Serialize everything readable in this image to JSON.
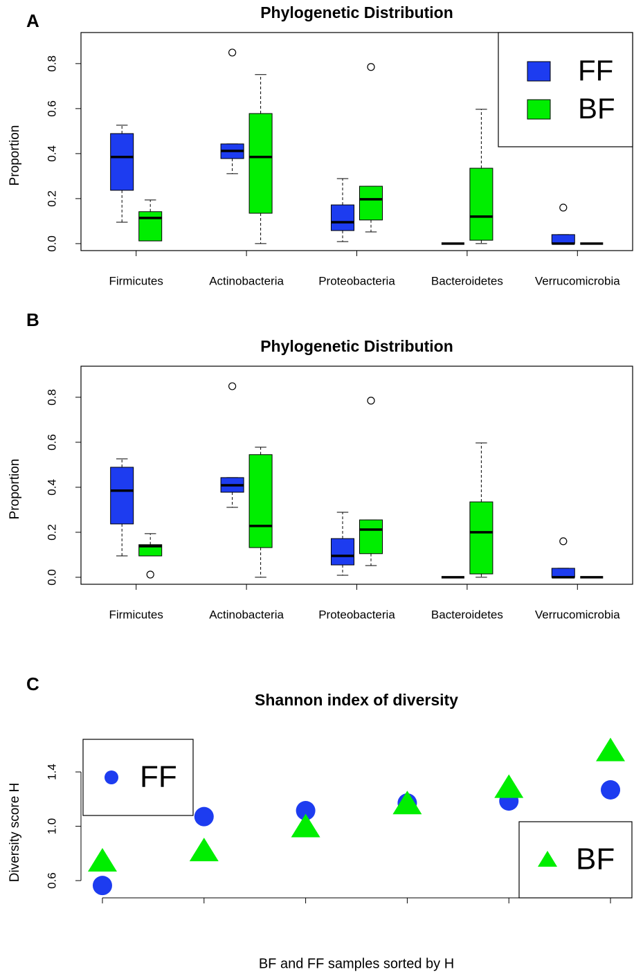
{
  "chart_data": [
    {
      "type": "box",
      "panel_label": "A",
      "title": "Phylogenetic Distribution",
      "y_label": "Proportion",
      "categories": [
        "Firmicutes",
        "Actinobacteria",
        "Proteobacteria",
        "Bacteroidetes",
        "Verrucomicrobia"
      ],
      "ylim": [
        -0.031,
        0.938
      ],
      "yticks": [
        {
          "value": 0,
          "label": "0.0"
        },
        0.2,
        0.4,
        0.6,
        0.8
      ],
      "legend": "top-right",
      "series": [
        {
          "name": "FF",
          "color": "#1d3cf0",
          "boxes": [
            {
              "low": 0.095,
              "q1": 0.237,
              "median": 0.385,
              "q3": 0.489,
              "high": 0.526,
              "outliers": []
            },
            {
              "low": 0.311,
              "q1": 0.378,
              "median": 0.412,
              "q3": 0.443,
              "high": 0.443,
              "outliers": [
                0.849
              ]
            },
            {
              "low": 0.009,
              "q1": 0.058,
              "median": 0.095,
              "q3": 0.172,
              "high": 0.289,
              "outliers": []
            },
            {
              "low": 0,
              "q1": 0,
              "median": 0,
              "q3": 0,
              "high": 0,
              "outliers": []
            },
            {
              "low": 0,
              "q1": 0,
              "median": 0,
              "q3": 0.04,
              "high": 0.04,
              "outliers": [
                0.16
              ]
            }
          ]
        },
        {
          "name": "BF",
          "color": "#00ee00",
          "boxes": [
            {
              "low": 0.012,
              "q1": 0.012,
              "median": 0.114,
              "q3": 0.142,
              "high": 0.194,
              "outliers": []
            },
            {
              "low": 0,
              "q1": 0.135,
              "median": 0.385,
              "q3": 0.578,
              "high": 0.751,
              "outliers": []
            },
            {
              "low": 0.052,
              "q1": 0.105,
              "median": 0.197,
              "q3": 0.255,
              "high": 0.255,
              "outliers": [
                0.785
              ]
            },
            {
              "low": 0,
              "q1": 0.015,
              "median": 0.12,
              "q3": 0.335,
              "high": 0.597,
              "outliers": []
            },
            {
              "low": 0,
              "q1": 0,
              "median": 0,
              "q3": 0,
              "high": 0,
              "outliers": []
            }
          ]
        }
      ]
    },
    {
      "type": "box",
      "panel_label": "B",
      "title": "Phylogenetic Distribution",
      "y_label": "Proportion",
      "categories": [
        "Firmicutes",
        "Actinobacteria",
        "Proteobacteria",
        "Bacteroidetes",
        "Verrucomicrobia"
      ],
      "ylim": [
        -0.031,
        0.938
      ],
      "yticks": [
        {
          "value": 0,
          "label": "0.0"
        },
        0.2,
        0.4,
        0.6,
        0.8
      ],
      "series": [
        {
          "name": "FF",
          "color": "#1d3cf0",
          "boxes": [
            {
              "low": 0.095,
              "q1": 0.237,
              "median": 0.385,
              "q3": 0.489,
              "high": 0.526,
              "outliers": []
            },
            {
              "low": 0.311,
              "q1": 0.378,
              "median": 0.409,
              "q3": 0.443,
              "high": 0.443,
              "outliers": [
                0.849
              ]
            },
            {
              "low": 0.009,
              "q1": 0.055,
              "median": 0.095,
              "q3": 0.172,
              "high": 0.289,
              "outliers": []
            },
            {
              "low": 0,
              "q1": 0,
              "median": 0,
              "q3": 0,
              "high": 0,
              "outliers": []
            },
            {
              "low": 0,
              "q1": 0,
              "median": 0,
              "q3": 0.04,
              "high": 0.04,
              "outliers": [
                0.16
              ]
            }
          ]
        },
        {
          "name": "BF",
          "color": "#00ee00",
          "boxes": [
            {
              "low": 0.095,
              "q1": 0.095,
              "median": 0.138,
              "q3": 0.145,
              "high": 0.194,
              "outliers": [
                0.012
              ]
            },
            {
              "low": 0,
              "q1": 0.132,
              "median": 0.228,
              "q3": 0.545,
              "high": 0.578,
              "outliers": []
            },
            {
              "low": 0.052,
              "q1": 0.105,
              "median": 0.212,
              "q3": 0.255,
              "high": 0.255,
              "outliers": [
                0.785
              ]
            },
            {
              "low": 0,
              "q1": 0.015,
              "median": 0.2,
              "q3": 0.335,
              "high": 0.597,
              "outliers": []
            },
            {
              "low": 0,
              "q1": 0,
              "median": 0,
              "q3": 0,
              "high": 0,
              "outliers": []
            }
          ]
        }
      ]
    },
    {
      "type": "scatter",
      "panel_label": "C",
      "title": "Shannon index of diversity",
      "y_label": "Diversity score H",
      "x_label": "BF and FF samples sorted by H",
      "x": [
        1,
        2,
        3,
        4,
        5,
        6
      ],
      "xlim": [
        0.789,
        6.211
      ],
      "xticks": [
        1,
        2,
        3,
        4,
        5,
        6
      ],
      "ylim": [
        0.473,
        1.64
      ],
      "yticks": [
        0.6,
        {
          "value": 1,
          "label": "1.0"
        },
        1.4
      ],
      "series": [
        {
          "name": "FF",
          "color": "#1d3cf0",
          "marker": "circle",
          "values": [
            0.564,
            1.071,
            1.115,
            1.171,
            1.186,
            1.268
          ]
        },
        {
          "name": "BF",
          "color": "#00ee00",
          "marker": "triangle",
          "values": [
            0.738,
            0.814,
            0.99,
            1.16,
            1.28,
            1.55
          ]
        }
      ]
    }
  ]
}
